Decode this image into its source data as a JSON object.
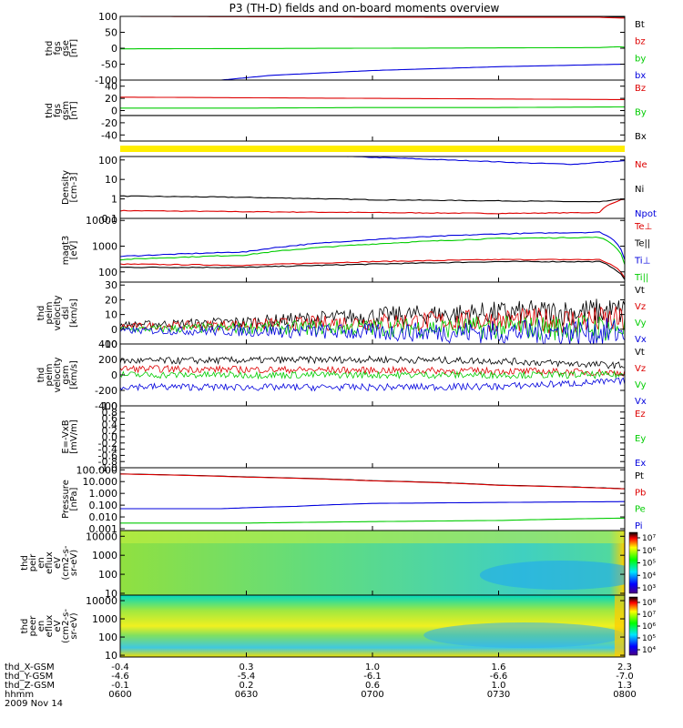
{
  "title": "P3 (TH-D) fields and on-board moments overview",
  "date": "2009 Nov 14",
  "chart_data": {
    "type": "line",
    "title": "P3 (TH-D) fields and on-board moments overview",
    "time_axis": {
      "ticks": [
        "0600",
        "0630",
        "0700",
        "0730",
        "0800"
      ],
      "rows": [
        {
          "label": "thd_X-GSM",
          "values": [
            "-0.4",
            "0.3",
            "1.0",
            "1.6",
            "2.3"
          ]
        },
        {
          "label": "thd_Y-GSM",
          "values": [
            "-4.6",
            "-5.4",
            "-6.1",
            "-6.6",
            "-7.0"
          ]
        },
        {
          "label": "thd_Z-GSM",
          "values": [
            "-0.1",
            "0.2",
            "0.6",
            "1.0",
            "1.3"
          ]
        },
        {
          "label": "hhmm",
          "values": [
            "0600",
            "0630",
            "0700",
            "0730",
            "0800"
          ]
        }
      ]
    },
    "panels": [
      {
        "id": "fgs_gse",
        "ylabel": [
          "thd",
          "fgs",
          "gse",
          "[nT]"
        ],
        "ylim": [
          -100,
          100
        ],
        "yticks": [
          "100",
          "50",
          "0",
          "-50",
          "-100"
        ],
        "series": [
          {
            "name": "Bt",
            "color": "#000000",
            "t": [
              0,
              0.5,
              1.0,
              1.5,
              1.9,
              1.98,
              2.0
            ],
            "y": [
              100,
              100,
              100,
              100,
              100,
              98,
              98
            ]
          },
          {
            "name": "bz",
            "color": "#dd0000",
            "t": [
              0,
              0.5,
              1.0,
              1.5,
              1.9,
              1.98,
              2.0
            ],
            "y": [
              100,
              99,
              98,
              97,
              97,
              95,
              95
            ]
          },
          {
            "name": "by",
            "color": "#00cc00",
            "t": [
              0,
              0.5,
              1.0,
              1.5,
              1.9,
              1.98,
              2.0
            ],
            "y": [
              -2,
              -1,
              0,
              1,
              2,
              5,
              3
            ]
          },
          {
            "name": "bx",
            "color": "#0000dd",
            "t": [
              0,
              0.4,
              0.6,
              1.0,
              1.5,
              2.0
            ],
            "y": [
              -100,
              -100,
              -85,
              -70,
              -58,
              -50
            ]
          }
        ]
      },
      {
        "id": "fgs_gsm",
        "ylabel": [
          "thd",
          "fgs",
          "gsm",
          "[nT]"
        ],
        "ylim": [
          -50,
          50
        ],
        "yticks": [
          "40",
          "20",
          "0",
          "-20",
          "-40"
        ],
        "series": [
          {
            "name": "Bz",
            "color": "#dd0000",
            "t": [
              0,
              0.5,
              1.0,
              1.5,
              2.0
            ],
            "y": [
              22,
              21,
              20,
              19,
              18
            ]
          },
          {
            "name": "By",
            "color": "#00cc00",
            "t": [
              0,
              0.5,
              1.0,
              1.5,
              2.0
            ],
            "y": [
              4,
              4,
              5,
              5,
              6
            ]
          },
          {
            "name": "Bx",
            "color": "#000000",
            "t": [
              0,
              0.5,
              1.0,
              1.5,
              2.0
            ],
            "y": [
              -8,
              -8,
              -8,
              -8,
              -8
            ]
          }
        ]
      },
      {
        "id": "density",
        "ylabel": [
          "Density",
          "[cm-3]"
        ],
        "scale": "log",
        "ylim": [
          0.1,
          150
        ],
        "yticks": [
          "100",
          "10",
          "1",
          "0.1"
        ],
        "series": [
          {
            "name": "Ne",
            "color": "#dd0000",
            "t": [
              0,
              0.5,
              1.0,
              1.5,
              1.9,
              2.0
            ],
            "y": [
              0.25,
              0.22,
              0.2,
              0.18,
              0.2,
              1.0
            ]
          },
          {
            "name": "Ni",
            "color": "#000000",
            "t": [
              0,
              0.5,
              1.0,
              1.5,
              1.9,
              2.0
            ],
            "y": [
              1.4,
              1.2,
              0.9,
              0.8,
              0.7,
              1.0
            ]
          },
          {
            "name": "Npot",
            "color": "#0000dd",
            "t": [
              0.9,
              1.2,
              1.6,
              1.8,
              2.0
            ],
            "y": [
              150,
              110,
              70,
              60,
              90
            ]
          }
        ]
      },
      {
        "id": "temperature",
        "ylabel": [
          "magt3",
          "[eV]"
        ],
        "scale": "log",
        "ylim": [
          40,
          12000
        ],
        "yticks": [
          "10000",
          "1000",
          "100"
        ],
        "series": [
          {
            "name": "Te⊥",
            "color": "#dd0000",
            "t": [
              0,
              0.5,
              1.0,
              1.5,
              1.9,
              2.0
            ],
            "y": [
              200,
              180,
              250,
              300,
              300,
              60
            ]
          },
          {
            "name": "Te||",
            "color": "#000000",
            "t": [
              0,
              0.5,
              1.0,
              1.5,
              1.9,
              2.0
            ],
            "y": [
              150,
              150,
              200,
              250,
              250,
              50
            ]
          },
          {
            "name": "Ti⊥",
            "color": "#0000dd",
            "t": [
              0,
              0.5,
              1.0,
              1.5,
              1.9,
              2.0
            ],
            "y": [
              400,
              600,
              1800,
              3000,
              3500,
              300
            ]
          },
          {
            "name": "Ti||",
            "color": "#00cc00",
            "t": [
              0,
              0.5,
              1.0,
              1.5,
              1.9,
              2.0
            ],
            "y": [
              300,
              450,
              1200,
              2000,
              2200,
              200
            ]
          }
        ]
      },
      {
        "id": "velocity_dsl",
        "ylabel": [
          "thd",
          "peim",
          "velocity",
          "dsl",
          "[km/s]"
        ],
        "ylim": [
          -10,
          32
        ],
        "yticks": [
          "30",
          "20",
          "10",
          "0",
          "-10"
        ],
        "series": [
          {
            "name": "Vt",
            "color": "#000000",
            "t": [
              0,
              0.5,
              1.0,
              1.5,
              2.0
            ],
            "y": [
              3,
              5,
              9,
              11,
              12
            ]
          },
          {
            "name": "Vz",
            "color": "#dd0000",
            "t": [
              0,
              0.5,
              1.0,
              1.5,
              2.0
            ],
            "y": [
              2,
              3,
              5,
              6,
              6
            ]
          },
          {
            "name": "Vy",
            "color": "#00cc00",
            "t": [
              0,
              0.5,
              1.0,
              1.5,
              2.0
            ],
            "y": [
              0,
              1,
              1,
              1,
              1
            ]
          },
          {
            "name": "Vx",
            "color": "#0000dd",
            "t": [
              0,
              0.5,
              1.0,
              1.5,
              2.0
            ],
            "y": [
              -1,
              -1,
              -2,
              -2,
              -2
            ]
          }
        ]
      },
      {
        "id": "velocity_gsm",
        "ylabel": [
          "thd",
          "peim",
          "velocity",
          "gsm",
          "[km/s]"
        ],
        "ylim": [
          -400,
          400
        ],
        "yticks": [
          "400",
          "200",
          "0",
          "-200",
          "-400"
        ],
        "series": [
          {
            "name": "Vt",
            "color": "#000000",
            "t": [
              0,
              0.5,
              1.0,
              1.5,
              2.0
            ],
            "y": [
              180,
              190,
              200,
              180,
              120
            ]
          },
          {
            "name": "Vz",
            "color": "#dd0000",
            "t": [
              0,
              0.5,
              1.0,
              1.5,
              2.0
            ],
            "y": [
              80,
              70,
              60,
              50,
              30
            ]
          },
          {
            "name": "Vy",
            "color": "#00cc00",
            "t": [
              0,
              0.5,
              1.0,
              1.5,
              2.0
            ],
            "y": [
              0,
              0,
              0,
              0,
              0
            ]
          },
          {
            "name": "Vx",
            "color": "#0000dd",
            "t": [
              0,
              0.5,
              1.0,
              1.5,
              2.0
            ],
            "y": [
              -150,
              -160,
              -160,
              -150,
              -80
            ]
          }
        ]
      },
      {
        "id": "efield",
        "ylabel": [
          "E=-VxB",
          "[mV/m]"
        ],
        "ylim": [
          -1,
          1
        ],
        "yticks": [
          "1.0",
          "0.8",
          "0.6",
          "0.4",
          "0.2",
          "0.0",
          "-0.2",
          "-0.4",
          "-0.6",
          "-0.8",
          "-1.0"
        ],
        "series": [
          {
            "name": "Ez",
            "color": "#dd0000",
            "t": [],
            "y": []
          },
          {
            "name": "Ey",
            "color": "#00cc00",
            "t": [],
            "y": []
          },
          {
            "name": "Ex",
            "color": "#0000dd",
            "t": [],
            "y": []
          }
        ]
      },
      {
        "id": "pressure",
        "ylabel": [
          "Pressure",
          "[nPa]"
        ],
        "scale": "log",
        "ylim": [
          0.0007,
          150
        ],
        "yticks": [
          "100.000",
          "10.000",
          "1.000",
          "0.100",
          "0.010",
          "0.001"
        ],
        "series": [
          {
            "name": "Pt",
            "color": "#000000",
            "t": [
              0,
              0.5,
              1.0,
              1.5,
              2.0
            ],
            "y": [
              45,
              25,
              12,
              5,
              2.5
            ]
          },
          {
            "name": "Pb",
            "color": "#dd0000",
            "t": [
              0,
              0.5,
              1.0,
              1.5,
              2.0
            ],
            "y": [
              44,
              24,
              11.5,
              4.8,
              2.4
            ]
          },
          {
            "name": "Pe",
            "color": "#00cc00",
            "t": [
              0,
              0.5,
              1.0,
              1.5,
              2.0
            ],
            "y": [
              0.003,
              0.003,
              0.004,
              0.005,
              0.008
            ]
          },
          {
            "name": "Pi",
            "color": "#0000dd",
            "t": [
              0,
              0.4,
              0.7,
              1.0,
              1.5,
              2.0
            ],
            "y": [
              0.05,
              0.05,
              0.08,
              0.14,
              0.17,
              0.2
            ]
          }
        ]
      },
      {
        "id": "ion_spectrogram",
        "type": "heatmap",
        "ylabel": [
          "thd",
          "peir",
          "en",
          "eflux",
          "eV",
          "(cm2-s-",
          "sr-eV)"
        ],
        "scale": "log",
        "ylim": [
          8,
          20000
        ],
        "yticks": [
          "10000",
          "1000",
          "100",
          "10"
        ],
        "colorbar": {
          "ticks": [
            "10⁷",
            "10⁶",
            "10⁵",
            "10⁴",
            "10³"
          ]
        }
      },
      {
        "id": "electron_spectrogram",
        "type": "heatmap",
        "ylabel": [
          "thd",
          "peer",
          "en",
          "eflux",
          "eV",
          "(cm2-s-",
          "sr-eV)"
        ],
        "scale": "log",
        "ylim": [
          8,
          20000
        ],
        "yticks": [
          "10000",
          "1000",
          "100",
          "10"
        ],
        "colorbar": {
          "ticks": [
            "10⁸",
            "10⁷",
            "10⁶",
            "10⁵",
            "10⁴"
          ]
        }
      }
    ]
  }
}
